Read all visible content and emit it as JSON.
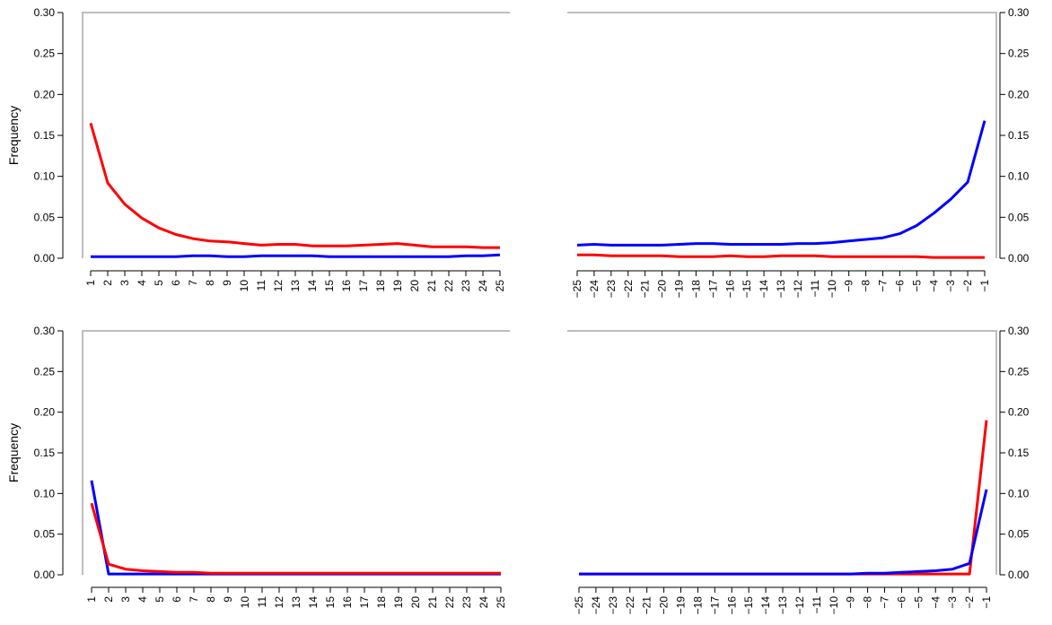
{
  "chart_data": [
    {
      "type": "line",
      "panel": "top-left",
      "ylabel": "Frequency",
      "ylim": [
        0,
        0.3
      ],
      "yticks": [
        "0.00",
        "0.05",
        "0.10",
        "0.15",
        "0.20",
        "0.25",
        "0.30"
      ],
      "x": [
        1,
        2,
        3,
        4,
        5,
        6,
        7,
        8,
        9,
        10,
        11,
        12,
        13,
        14,
        15,
        16,
        17,
        18,
        19,
        20,
        21,
        22,
        23,
        24,
        25
      ],
      "series": [
        {
          "color": "#ff0000",
          "values": [
            0.165,
            0.092,
            0.066,
            0.049,
            0.037,
            0.029,
            0.024,
            0.021,
            0.02,
            0.018,
            0.016,
            0.017,
            0.017,
            0.015,
            0.015,
            0.015,
            0.016,
            0.017,
            0.018,
            0.016,
            0.014,
            0.014,
            0.014,
            0.013,
            0.013
          ]
        },
        {
          "color": "#0000ff",
          "values": [
            0.002,
            0.002,
            0.002,
            0.002,
            0.002,
            0.002,
            0.003,
            0.003,
            0.002,
            0.002,
            0.003,
            0.003,
            0.003,
            0.003,
            0.002,
            0.002,
            0.002,
            0.002,
            0.002,
            0.002,
            0.002,
            0.002,
            0.003,
            0.003,
            0.004
          ]
        }
      ]
    },
    {
      "type": "line",
      "panel": "top-right",
      "ylim": [
        0,
        0.3
      ],
      "yticks": [
        "0.00",
        "0.05",
        "0.10",
        "0.15",
        "0.20",
        "0.25",
        "0.30"
      ],
      "x": [
        -25,
        -24,
        -23,
        -22,
        -21,
        -20,
        -19,
        -18,
        -17,
        -16,
        -15,
        -14,
        -13,
        -12,
        -11,
        -10,
        -9,
        -8,
        -7,
        -6,
        -5,
        -4,
        -3,
        -2,
        -1
      ],
      "series": [
        {
          "color": "#0000ff",
          "values": [
            0.016,
            0.017,
            0.016,
            0.016,
            0.016,
            0.016,
            0.017,
            0.018,
            0.018,
            0.017,
            0.017,
            0.017,
            0.017,
            0.018,
            0.018,
            0.019,
            0.021,
            0.023,
            0.025,
            0.03,
            0.04,
            0.055,
            0.072,
            0.093,
            0.168
          ]
        },
        {
          "color": "#ff0000",
          "values": [
            0.004,
            0.004,
            0.003,
            0.003,
            0.003,
            0.003,
            0.002,
            0.002,
            0.002,
            0.003,
            0.002,
            0.002,
            0.003,
            0.003,
            0.003,
            0.002,
            0.002,
            0.002,
            0.002,
            0.002,
            0.002,
            0.001,
            0.001,
            0.001,
            0.001
          ]
        }
      ]
    },
    {
      "type": "line",
      "panel": "bottom-left",
      "ylabel": "Frequency",
      "ylim": [
        0,
        0.3
      ],
      "yticks": [
        "0.00",
        "0.05",
        "0.10",
        "0.15",
        "0.20",
        "0.25",
        "0.30"
      ],
      "x": [
        1,
        2,
        3,
        4,
        5,
        6,
        7,
        8,
        9,
        10,
        11,
        12,
        13,
        14,
        15,
        16,
        17,
        18,
        19,
        20,
        21,
        22,
        23,
        24,
        25
      ],
      "series": [
        {
          "color": "#0000ff",
          "values": [
            0.116,
            0.001,
            0.001,
            0.001,
            0.001,
            0.001,
            0.001,
            0.001,
            0.001,
            0.001,
            0.001,
            0.001,
            0.001,
            0.001,
            0.001,
            0.001,
            0.001,
            0.001,
            0.001,
            0.001,
            0.001,
            0.001,
            0.001,
            0.001,
            0.001
          ]
        },
        {
          "color": "#ff0000",
          "values": [
            0.088,
            0.013,
            0.007,
            0.005,
            0.004,
            0.003,
            0.003,
            0.002,
            0.002,
            0.002,
            0.002,
            0.002,
            0.002,
            0.002,
            0.002,
            0.002,
            0.002,
            0.002,
            0.002,
            0.002,
            0.002,
            0.002,
            0.002,
            0.002,
            0.002
          ]
        }
      ]
    },
    {
      "type": "line",
      "panel": "bottom-right",
      "ylim": [
        0,
        0.3
      ],
      "yticks": [
        "0.00",
        "0.05",
        "0.10",
        "0.15",
        "0.20",
        "0.25",
        "0.30"
      ],
      "x": [
        -25,
        -24,
        -23,
        -22,
        -21,
        -20,
        -19,
        -18,
        -17,
        -16,
        -15,
        -14,
        -13,
        -12,
        -11,
        -10,
        -9,
        -8,
        -7,
        -6,
        -5,
        -4,
        -3,
        -2,
        -1
      ],
      "series": [
        {
          "color": "#ff0000",
          "values": [
            0.001,
            0.001,
            0.001,
            0.001,
            0.001,
            0.001,
            0.001,
            0.001,
            0.001,
            0.001,
            0.001,
            0.001,
            0.001,
            0.001,
            0.001,
            0.001,
            0.001,
            0.001,
            0.001,
            0.001,
            0.001,
            0.001,
            0.001,
            0.001,
            0.19
          ]
        },
        {
          "color": "#0000ff",
          "values": [
            0.001,
            0.001,
            0.001,
            0.001,
            0.001,
            0.001,
            0.001,
            0.001,
            0.001,
            0.001,
            0.001,
            0.001,
            0.001,
            0.001,
            0.001,
            0.001,
            0.001,
            0.002,
            0.002,
            0.003,
            0.004,
            0.005,
            0.007,
            0.014,
            0.105
          ]
        }
      ]
    }
  ]
}
